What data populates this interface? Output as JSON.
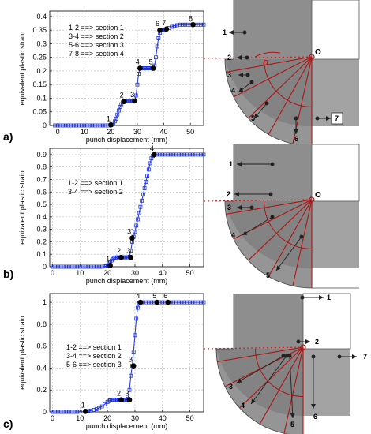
{
  "panels": [
    {
      "label": "a)",
      "legend": [
        "1-2 ==> section 1",
        "3-4 ==> section 2",
        "5-6 ==> section 3",
        "7-8 ==> section 4"
      ],
      "chart_data": {
        "type": "line",
        "xlabel": "punch displacement (mm)",
        "ylabel": "equivalent plastic strain",
        "xlim": [
          -3,
          55
        ],
        "ylim": [
          0,
          0.42
        ],
        "xticks": [
          "0",
          "10",
          "20",
          "30",
          "40",
          "50"
        ],
        "yticks": [
          "0",
          "0.05",
          "0.1",
          "0.15",
          "0.2",
          "0.25",
          "0.3",
          "0.35",
          "0.4"
        ],
        "x": [
          -1,
          0,
          1,
          2,
          3,
          4,
          5,
          6,
          7,
          8,
          9,
          10,
          11,
          12,
          13,
          14,
          15,
          16,
          17,
          18,
          19,
          20,
          20.5,
          21,
          21.5,
          22,
          22.5,
          23,
          23.5,
          24,
          24.5,
          25,
          25.5,
          26,
          26.5,
          27,
          27.5,
          28,
          28.5,
          29,
          29.5,
          30,
          30.5,
          31,
          31.5,
          32,
          32.5,
          33,
          33.5,
          34,
          34.5,
          35,
          35.5,
          36,
          36.5,
          37,
          37.5,
          38,
          38.5,
          39,
          39.5,
          40,
          40.5,
          41,
          42,
          43,
          44,
          45,
          46,
          47,
          48,
          49,
          50,
          51,
          52,
          53,
          54,
          55
        ],
        "y": [
          0,
          0,
          0,
          0,
          0,
          0,
          0,
          0,
          0,
          0,
          0,
          0,
          0,
          0,
          0,
          0,
          0,
          0,
          0,
          0,
          0,
          0.001,
          0.003,
          0.008,
          0.015,
          0.025,
          0.04,
          0.055,
          0.068,
          0.078,
          0.085,
          0.088,
          0.09,
          0.09,
          0.09,
          0.09,
          0.09,
          0.09,
          0.09,
          0.09,
          0.11,
          0.15,
          0.19,
          0.21,
          0.21,
          0.21,
          0.21,
          0.21,
          0.21,
          0.21,
          0.21,
          0.21,
          0.21,
          0.21,
          0.22,
          0.25,
          0.29,
          0.32,
          0.34,
          0.35,
          0.35,
          0.35,
          0.352,
          0.354,
          0.358,
          0.362,
          0.366,
          0.368,
          0.37,
          0.37,
          0.37,
          0.37,
          0.37,
          0.37,
          0.37,
          0.37,
          0.37,
          0.37
        ],
        "points": [
          {
            "label": "1",
            "x": 20,
            "y": 0.002
          },
          {
            "label": "2",
            "x": 25,
            "y": 0.088
          },
          {
            "label": "3",
            "x": 29,
            "y": 0.09
          },
          {
            "label": "4",
            "x": 31,
            "y": 0.21
          },
          {
            "label": "5",
            "x": 36,
            "y": 0.21
          },
          {
            "label": "6",
            "x": 38.5,
            "y": 0.35
          },
          {
            "label": "7",
            "x": 41,
            "y": 0.354
          },
          {
            "label": "8",
            "x": 51,
            "y": 0.37
          }
        ]
      },
      "diagram": {
        "center_label": "O",
        "angle_label": "α",
        "arrows": [
          {
            "label": "1"
          },
          {
            "label": "2"
          },
          {
            "label": "3"
          },
          {
            "label": "4"
          },
          {
            "label": "5"
          },
          {
            "label": "6"
          },
          {
            "label": "7",
            "boxed": true
          }
        ]
      }
    },
    {
      "label": "b)",
      "legend": [
        "1-2 ==> section 1",
        "3-4 ==> section 2"
      ],
      "chart_data": {
        "type": "line",
        "xlabel": "punch displacement (mm)",
        "ylabel": "equivalent plastic strain",
        "xlim": [
          -1,
          55
        ],
        "ylim": [
          0,
          0.95
        ],
        "xticks": [
          "0",
          "10",
          "20",
          "30",
          "40",
          "50"
        ],
        "yticks": [
          "0",
          "0.1",
          "0.2",
          "0.3",
          "0.4",
          "0.5",
          "0.6",
          "0.7",
          "0.8",
          "0.9"
        ],
        "x": [
          0,
          1,
          2,
          3,
          4,
          5,
          6,
          7,
          8,
          9,
          10,
          11,
          12,
          13,
          14,
          15,
          16,
          17,
          18,
          19,
          19.5,
          20,
          20.5,
          21,
          21.5,
          22,
          22.5,
          23,
          23.5,
          24,
          24.5,
          25,
          25.5,
          26,
          26.5,
          27,
          27.5,
          28,
          28.5,
          29,
          29.5,
          30,
          30.5,
          31,
          31.5,
          32,
          32.5,
          33,
          33.5,
          34,
          34.5,
          35,
          35.5,
          36,
          36.5,
          37,
          38,
          39,
          40,
          41,
          42,
          43,
          44,
          45,
          46,
          47,
          48,
          49,
          50,
          51,
          52,
          53,
          54,
          55
        ],
        "y": [
          0,
          0,
          0,
          0,
          0,
          0,
          0,
          0,
          0,
          0,
          0,
          0,
          0,
          0,
          0,
          0,
          0,
          0,
          0,
          0.002,
          0.005,
          0.01,
          0.02,
          0.035,
          0.05,
          0.062,
          0.07,
          0.074,
          0.075,
          0.075,
          0.075,
          0.075,
          0.075,
          0.075,
          0.075,
          0.075,
          0.075,
          0.08,
          0.13,
          0.2,
          0.24,
          0.28,
          0.33,
          0.38,
          0.43,
          0.48,
          0.53,
          0.58,
          0.63,
          0.68,
          0.73,
          0.78,
          0.83,
          0.87,
          0.89,
          0.9,
          0.9,
          0.9,
          0.9,
          0.9,
          0.9,
          0.9,
          0.9,
          0.9,
          0.9,
          0.9,
          0.9,
          0.9,
          0.9,
          0.9,
          0.9,
          0.9,
          0.9,
          0.9
        ],
        "points": [
          {
            "label": "1",
            "x": 21,
            "y": 0.01
          },
          {
            "label": "2",
            "x": 25,
            "y": 0.075
          },
          {
            "label": "3",
            "x": 28.5,
            "y": 0.075
          },
          {
            "label": "3'",
            "x": 29,
            "y": 0.23
          },
          {
            "label": "4",
            "x": 37,
            "y": 0.9
          }
        ]
      },
      "diagram": {
        "center_label": "O",
        "angle_label": "",
        "arrows": [
          {
            "label": "1"
          },
          {
            "label": "2"
          },
          {
            "label": "3"
          },
          {
            "label": "4"
          },
          {
            "label": "5"
          }
        ]
      }
    },
    {
      "label": "c)",
      "legend": [
        "1-2 ==> section 1",
        "3-4 ==> section 2",
        "5-6 ==> section 3"
      ],
      "chart_data": {
        "type": "line",
        "xlabel": "punch displacement (mm)",
        "ylabel": "equivalent plastic strain",
        "xlim": [
          -1,
          55
        ],
        "ylim": [
          0,
          1.08
        ],
        "xticks": [
          "0",
          "10",
          "20",
          "30",
          "40",
          "50"
        ],
        "yticks": [
          "0",
          "0.2",
          "0.4",
          "0.6",
          "0.8",
          "1"
        ],
        "x": [
          0,
          1,
          2,
          3,
          4,
          5,
          6,
          7,
          8,
          9,
          10,
          11,
          12,
          13,
          14,
          15,
          16,
          17,
          18,
          19,
          20,
          20.5,
          21,
          21.5,
          22,
          22.5,
          23,
          23.5,
          24,
          24.5,
          25,
          25.5,
          26,
          26.5,
          27,
          27.5,
          28,
          28.5,
          29,
          29.5,
          30,
          30.5,
          31,
          31.5,
          32,
          32.5,
          33,
          34,
          35,
          36,
          37,
          38,
          39,
          40,
          41,
          42,
          43,
          44,
          45,
          46,
          47,
          48,
          49,
          50,
          51,
          52,
          53,
          54,
          55
        ],
        "y": [
          0,
          0,
          0,
          0,
          0,
          0,
          0,
          0,
          0,
          0,
          0.002,
          0.003,
          0.005,
          0.008,
          0.012,
          0.018,
          0.025,
          0.035,
          0.05,
          0.07,
          0.09,
          0.1,
          0.105,
          0.11,
          0.11,
          0.11,
          0.11,
          0.11,
          0.11,
          0.11,
          0.11,
          0.11,
          0.11,
          0.11,
          0.11,
          0.12,
          0.2,
          0.33,
          0.42,
          0.55,
          0.7,
          0.85,
          0.95,
          0.99,
          1.0,
          1.0,
          1.0,
          1.0,
          1.0,
          1.0,
          1.0,
          1.0,
          1.0,
          1.0,
          1.0,
          1.0,
          1.0,
          1.0,
          1.0,
          1.0,
          1.0,
          1.0,
          1.0,
          1.0,
          1.0,
          1.0,
          1.0,
          1.0,
          1.0
        ],
        "points": [
          {
            "label": "1",
            "x": 12,
            "y": 0.005
          },
          {
            "label": "2",
            "x": 25,
            "y": 0.11
          },
          {
            "label": "3",
            "x": 28,
            "y": 0.11
          },
          {
            "label": "3'",
            "x": 29.5,
            "y": 0.42
          },
          {
            "label": "4",
            "x": 32,
            "y": 1.0
          },
          {
            "label": "5",
            "x": 38,
            "y": 1.0
          },
          {
            "label": "6",
            "x": 42,
            "y": 1.0
          }
        ]
      },
      "diagram": {
        "center_label": "",
        "angle_label": "",
        "arrows": [
          {
            "label": "1"
          },
          {
            "label": "2"
          },
          {
            "label": "3"
          },
          {
            "label": "4"
          },
          {
            "label": "5"
          },
          {
            "label": "6"
          },
          {
            "label": "7"
          }
        ]
      }
    }
  ],
  "colors": {
    "curve": "#1f33d6",
    "marker": "#000000",
    "section_line": "#b01414",
    "guide_line": "#d41c1c",
    "part_fill": "#9a9a9a"
  }
}
